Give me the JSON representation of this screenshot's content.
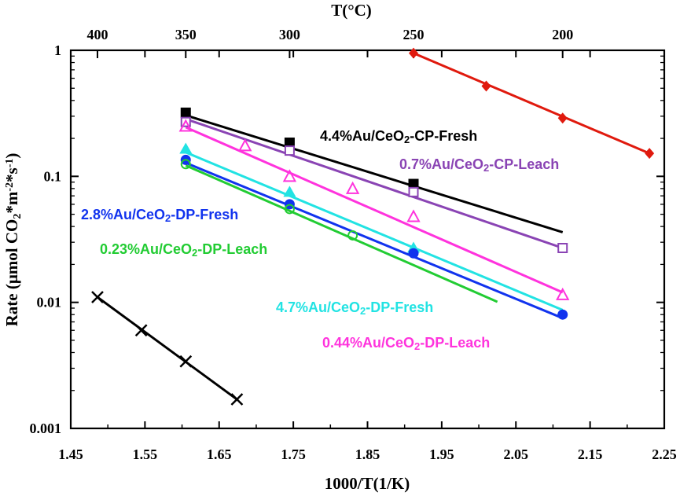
{
  "chart_data": {
    "type": "scatter",
    "title": "",
    "xlabel": "1000/T(1/K)",
    "ylabel": "Rate (μmol CO2*m-2*s-1)",
    "top_axis_label": "T(°C)",
    "xlim": [
      1.45,
      2.25
    ],
    "ylim": [
      0.001,
      1
    ],
    "yscale": "log",
    "x_ticks": [
      {
        "value": 1.45,
        "label": "1.45"
      },
      {
        "value": 1.55,
        "label": "1.55"
      },
      {
        "value": 1.65,
        "label": "1.65"
      },
      {
        "value": 1.75,
        "label": "1.75"
      },
      {
        "value": 1.85,
        "label": "1.85"
      },
      {
        "value": 1.95,
        "label": "1.95"
      },
      {
        "value": 2.05,
        "label": "2.05"
      },
      {
        "value": 2.15,
        "label": "2.15"
      },
      {
        "value": 2.25,
        "label": "2.25"
      }
    ],
    "y_ticks": [
      {
        "value": 1,
        "label": "1"
      },
      {
        "value": 0.1,
        "label": "0.1"
      },
      {
        "value": 0.01,
        "label": "0.01"
      },
      {
        "value": 0.001,
        "label": "0.001"
      }
    ],
    "top_ticks": [
      {
        "value": 1.486,
        "label": "400"
      },
      {
        "value": 1.605,
        "label": "350"
      },
      {
        "value": 1.745,
        "label": "300"
      },
      {
        "value": 1.912,
        "label": "250"
      },
      {
        "value": 2.113,
        "label": "200"
      }
    ],
    "series": [
      {
        "name": "4.4%Au/CeO2-CP-Fresh",
        "label_main": "4.4%Au/CeO",
        "label_sub": "2",
        "label_rest": "-CP-Fresh",
        "color": "#000000",
        "marker": "square-filled",
        "points": [
          [
            1.605,
            0.32
          ],
          [
            1.745,
            0.185
          ],
          [
            1.912,
            0.087
          ]
        ],
        "fit": [
          [
            1.605,
            0.305
          ],
          [
            2.113,
            0.036
          ]
        ]
      },
      {
        "name": "0.7%Au/CeO2-CP-Leach",
        "label_main": "0.7%Au/CeO",
        "label_sub": "2",
        "label_rest": "-CP-Leach",
        "color": "#8a44b4",
        "marker": "square-open",
        "points": [
          [
            1.605,
            0.27
          ],
          [
            1.745,
            0.16
          ],
          [
            1.912,
            0.075
          ],
          [
            2.113,
            0.027
          ]
        ],
        "fit": [
          [
            1.605,
            0.285
          ],
          [
            2.113,
            0.027
          ]
        ]
      },
      {
        "name": "0.44%Au/CeO2-DP-Leach",
        "label_main": "0.44%Au/CeO",
        "label_sub": "2",
        "label_rest": "-DP-Leach",
        "color": "#ff33dd",
        "marker": "triangle-open",
        "points": [
          [
            1.605,
            0.25
          ],
          [
            1.685,
            0.175
          ],
          [
            1.745,
            0.1
          ],
          [
            1.83,
            0.08
          ],
          [
            1.912,
            0.048
          ],
          [
            2.113,
            0.0115
          ]
        ],
        "fit": [
          [
            1.605,
            0.245
          ],
          [
            2.113,
            0.012
          ]
        ]
      },
      {
        "name": "4.7%Au/CeO2-DP-Fresh",
        "label_main": "4.7%Au/CeO",
        "label_sub": "2",
        "label_rest": "-DP-Fresh",
        "color": "#22e3e3",
        "marker": "triangle-filled",
        "points": [
          [
            1.605,
            0.165
          ],
          [
            1.745,
            0.075
          ],
          [
            1.912,
            0.027
          ]
        ],
        "fit": [
          [
            1.605,
            0.155
          ],
          [
            2.113,
            0.0087
          ]
        ]
      },
      {
        "name": "2.8%Au/CeO2-DP-Fresh",
        "label_main": "2.8%Au/CeO",
        "label_sub": "2",
        "label_rest": "-DP-Fresh",
        "color": "#1133ee",
        "marker": "circle-filled",
        "points": [
          [
            1.605,
            0.135
          ],
          [
            1.745,
            0.06
          ],
          [
            1.912,
            0.0245
          ],
          [
            2.113,
            0.008
          ]
        ],
        "fit": [
          [
            1.605,
            0.128
          ],
          [
            2.113,
            0.0075
          ]
        ]
      },
      {
        "name": "0.23%Au/CeO2-DP-Leach",
        "label_main": "0.23%Au/CeO",
        "label_sub": "2",
        "label_rest": "-DP-Leach",
        "color": "#22cc33",
        "marker": "circle-open",
        "points": [
          [
            1.605,
            0.125
          ],
          [
            1.745,
            0.055
          ],
          [
            1.83,
            0.034
          ]
        ],
        "fit": [
          [
            1.605,
            0.122
          ],
          [
            2.025,
            0.0101
          ]
        ]
      },
      {
        "name": "red series",
        "label_main": "",
        "label_sub": "",
        "label_rest": "",
        "color": "#e01a0e",
        "marker": "diamond-filled",
        "points": [
          [
            1.912,
            0.95
          ],
          [
            2.01,
            0.52
          ],
          [
            2.113,
            0.29
          ],
          [
            2.23,
            0.152
          ]
        ],
        "fit": [
          [
            1.912,
            0.95
          ],
          [
            2.23,
            0.152
          ]
        ]
      },
      {
        "name": "black x series",
        "label_main": "",
        "label_sub": "",
        "label_rest": "",
        "color": "#000000",
        "marker": "x",
        "points": [
          [
            1.486,
            0.011
          ],
          [
            1.545,
            0.006
          ],
          [
            1.605,
            0.0034
          ],
          [
            1.674,
            0.0017
          ]
        ],
        "fit": [
          [
            1.486,
            0.011
          ],
          [
            1.674,
            0.0017
          ]
        ]
      }
    ]
  }
}
